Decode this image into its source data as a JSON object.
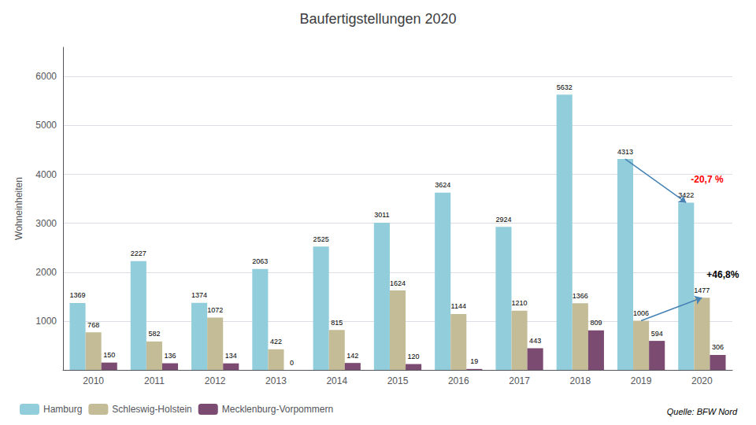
{
  "chart_data": {
    "type": "bar",
    "title": "Baufertigstellungen 2020",
    "ylabel": "Wohneinheiten",
    "categories": [
      "2010",
      "2011",
      "2012",
      "2013",
      "2014",
      "2015",
      "2016",
      "2017",
      "2018",
      "2019",
      "2020"
    ],
    "series": [
      {
        "name": "Hamburg",
        "color": "#92CDDC",
        "values": [
          1369,
          2227,
          1374,
          2063,
          2525,
          3011,
          3624,
          2924,
          5632,
          4313,
          3422
        ]
      },
      {
        "name": "Schleswig-Holstein",
        "color": "#C4BC96",
        "values": [
          768,
          582,
          1072,
          422,
          815,
          1624,
          1144,
          1210,
          1366,
          1006,
          1477
        ]
      },
      {
        "name": "Mecklenburg-Vorpommern",
        "color": "#7B4B72",
        "values": [
          150,
          136,
          134,
          0,
          142,
          120,
          19,
          443,
          809,
          594,
          306
        ]
      }
    ],
    "ylim": [
      0,
      6600
    ],
    "yticks": [
      1000,
      2000,
      3000,
      4000,
      5000,
      6000
    ],
    "grid": true,
    "legend": "bottom left",
    "data_labels": true,
    "annotations": [
      {
        "text": "-20,7 %",
        "color": "red",
        "category": "2020",
        "series": "Hamburg"
      },
      {
        "text": "+46,8%",
        "color": "black",
        "category": "2020",
        "series": "Schleswig-Holstein"
      }
    ],
    "source": "Quelle: BFW Nord"
  }
}
